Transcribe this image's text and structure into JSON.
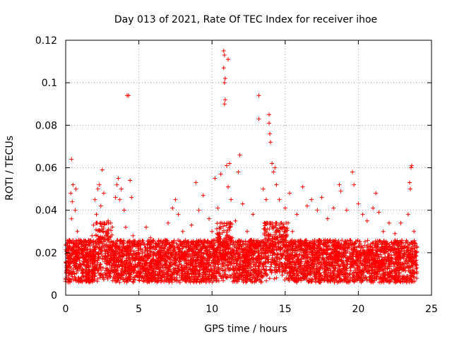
{
  "chart_data": {
    "type": "scatter",
    "title": "Day 013 of 2021, Rate Of TEC Index for receiver ihoe",
    "xlabel": "GPS time / hours",
    "ylabel": "ROTI / TECUs",
    "xlim": [
      0,
      25
    ],
    "ylim": [
      0,
      0.12
    ],
    "x_ticks": [
      0,
      5,
      10,
      15,
      20,
      25
    ],
    "y_ticks": [
      0,
      0.02,
      0.04,
      0.06,
      0.08,
      0.1,
      0.12
    ],
    "x_tick_labels": [
      "0",
      "5",
      "10",
      "15",
      "20",
      "25"
    ],
    "y_tick_labels": [
      "0",
      "0.02",
      "0.04",
      "0.06",
      "0.08",
      "0.1",
      "0.12"
    ],
    "grid": true,
    "marker": "plus",
    "color": "#ff0000",
    "note_on_density": "dense band of points approx 0.005-0.03 across 0-24 h; points below sample visible values",
    "series": [
      {
        "points": [
          [
            0.1,
            0.012
          ],
          [
            0.15,
            0.022
          ],
          [
            0.2,
            0.018
          ],
          [
            0.25,
            0.026
          ],
          [
            0.3,
            0.015
          ],
          [
            0.35,
            0.048
          ],
          [
            0.4,
            0.036
          ],
          [
            0.4,
            0.064
          ],
          [
            0.45,
            0.044
          ],
          [
            0.5,
            0.052
          ],
          [
            0.55,
            0.02
          ],
          [
            0.6,
            0.01
          ],
          [
            0.65,
            0.04
          ],
          [
            0.7,
            0.05
          ],
          [
            0.75,
            0.018
          ],
          [
            0.8,
            0.03
          ],
          [
            0.85,
            0.008
          ],
          [
            0.9,
            0.024
          ],
          [
            1.0,
            0.014
          ],
          [
            1.1,
            0.021
          ],
          [
            1.2,
            0.009
          ],
          [
            1.3,
            0.017
          ],
          [
            1.4,
            0.012
          ],
          [
            1.5,
            0.011
          ],
          [
            1.6,
            0.019
          ],
          [
            1.7,
            0.016
          ],
          [
            1.8,
            0.028
          ],
          [
            1.9,
            0.033
          ],
          [
            2.0,
            0.045
          ],
          [
            2.1,
            0.038
          ],
          [
            2.2,
            0.05
          ],
          [
            2.3,
            0.052
          ],
          [
            2.4,
            0.042
          ],
          [
            2.5,
            0.059
          ],
          [
            2.6,
            0.048
          ],
          [
            2.7,
            0.03
          ],
          [
            2.8,
            0.021
          ],
          [
            2.9,
            0.035
          ],
          [
            3.0,
            0.027
          ],
          [
            3.2,
            0.019
          ],
          [
            3.4,
            0.046
          ],
          [
            3.5,
            0.052
          ],
          [
            3.6,
            0.055
          ],
          [
            3.7,
            0.045
          ],
          [
            3.8,
            0.05
          ],
          [
            4.0,
            0.04
          ],
          [
            4.1,
            0.032
          ],
          [
            4.2,
            0.094
          ],
          [
            4.3,
            0.094
          ],
          [
            4.4,
            0.054
          ],
          [
            4.5,
            0.046
          ],
          [
            4.6,
            0.028
          ],
          [
            4.8,
            0.018
          ],
          [
            5.0,
            0.022
          ],
          [
            5.2,
            0.017
          ],
          [
            5.5,
            0.032
          ],
          [
            5.8,
            0.027
          ],
          [
            6.0,
            0.02
          ],
          [
            6.2,
            0.024
          ],
          [
            6.5,
            0.018
          ],
          [
            6.8,
            0.026
          ],
          [
            7.0,
            0.034
          ],
          [
            7.3,
            0.041
          ],
          [
            7.5,
            0.045
          ],
          [
            7.7,
            0.038
          ],
          [
            8.0,
            0.03
          ],
          [
            8.3,
            0.025
          ],
          [
            8.6,
            0.033
          ],
          [
            8.9,
            0.053
          ],
          [
            9.1,
            0.04
          ],
          [
            9.4,
            0.047
          ],
          [
            9.8,
            0.036
          ],
          [
            10.0,
            0.03
          ],
          [
            10.2,
            0.055
          ],
          [
            10.4,
            0.041
          ],
          [
            10.6,
            0.057
          ],
          [
            10.8,
            0.115
          ],
          [
            10.85,
            0.113
          ],
          [
            10.8,
            0.107
          ],
          [
            10.9,
            0.102
          ],
          [
            10.85,
            0.1
          ],
          [
            10.9,
            0.092
          ],
          [
            10.85,
            0.09
          ],
          [
            11.1,
            0.111
          ],
          [
            11.0,
            0.061
          ],
          [
            11.2,
            0.062
          ],
          [
            11.1,
            0.051
          ],
          [
            11.3,
            0.045
          ],
          [
            11.6,
            0.035
          ],
          [
            11.9,
            0.066
          ],
          [
            11.8,
            0.058
          ],
          [
            12.1,
            0.043
          ],
          [
            12.4,
            0.03
          ],
          [
            12.8,
            0.038
          ],
          [
            13.2,
            0.094
          ],
          [
            13.2,
            0.083
          ],
          [
            13.5,
            0.05
          ],
          [
            13.7,
            0.045
          ],
          [
            13.9,
            0.085
          ],
          [
            13.9,
            0.081
          ],
          [
            13.95,
            0.076
          ],
          [
            14.0,
            0.072
          ],
          [
            14.1,
            0.062
          ],
          [
            14.2,
            0.058
          ],
          [
            14.3,
            0.06
          ],
          [
            14.4,
            0.052
          ],
          [
            14.6,
            0.045
          ],
          [
            14.8,
            0.031
          ],
          [
            15.0,
            0.041
          ],
          [
            15.3,
            0.048
          ],
          [
            15.5,
            0.03
          ],
          [
            15.8,
            0.038
          ],
          [
            16.2,
            0.051
          ],
          [
            16.5,
            0.042
          ],
          [
            16.8,
            0.045
          ],
          [
            17.2,
            0.04
          ],
          [
            17.5,
            0.046
          ],
          [
            17.9,
            0.036
          ],
          [
            18.3,
            0.041
          ],
          [
            18.7,
            0.052
          ],
          [
            18.8,
            0.049
          ],
          [
            19.2,
            0.04
          ],
          [
            19.6,
            0.058
          ],
          [
            19.7,
            0.052
          ],
          [
            20.0,
            0.043
          ],
          [
            20.3,
            0.038
          ],
          [
            20.6,
            0.035
          ],
          [
            21.0,
            0.041
          ],
          [
            21.2,
            0.048
          ],
          [
            21.4,
            0.039
          ],
          [
            21.7,
            0.03
          ],
          [
            22.1,
            0.034
          ],
          [
            22.5,
            0.029
          ],
          [
            22.9,
            0.034
          ],
          [
            23.4,
            0.038
          ],
          [
            23.5,
            0.053
          ],
          [
            23.6,
            0.06
          ],
          [
            23.65,
            0.061
          ],
          [
            23.55,
            0.05
          ],
          [
            23.8,
            0.03
          ],
          [
            23.9,
            0.02
          ]
        ]
      }
    ]
  }
}
